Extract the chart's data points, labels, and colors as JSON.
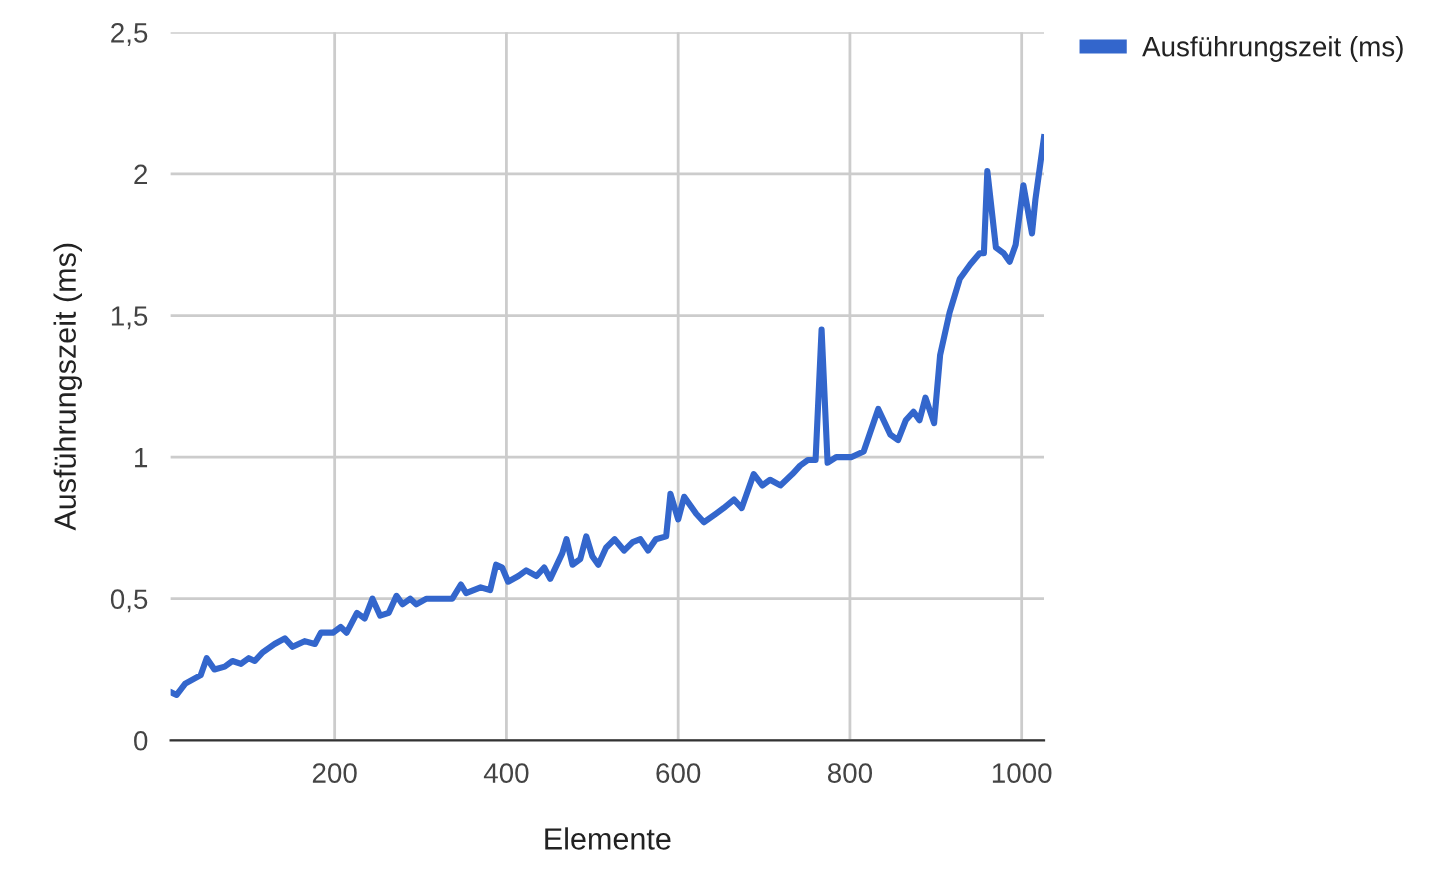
{
  "chart_data": {
    "type": "line",
    "xlabel": "Elemente",
    "ylabel": "Ausführungszeit (ms)",
    "xlim": [
      9,
      1026
    ],
    "xticks": [
      200,
      400,
      600,
      800,
      1000
    ],
    "ylim": [
      0,
      2.5
    ],
    "yticks": [
      {
        "value": 0,
        "label": "0"
      },
      {
        "value": 0.5,
        "label": "0,5"
      },
      {
        "value": 1,
        "label": "1"
      },
      {
        "value": 1.5,
        "label": "1,5"
      },
      {
        "value": 2,
        "label": "2"
      },
      {
        "value": 2.5,
        "label": "2,5"
      }
    ],
    "grid": true,
    "legend": "top right",
    "marker": "none",
    "line_style": "solid",
    "series": [
      {
        "name": "Ausführungszeit (ms)",
        "color": "#3366cc",
        "x": [
          9,
          16,
          26,
          44,
          51,
          60,
          72,
          81,
          91,
          100,
          107,
          116,
          130,
          142,
          151,
          165,
          177,
          184,
          198,
          207,
          214,
          226,
          235,
          244,
          253,
          263,
          272,
          279,
          288,
          295,
          307,
          323,
          337,
          347,
          353,
          370,
          381,
          388,
          395,
          402,
          414,
          423,
          435,
          444,
          451,
          465,
          470,
          477,
          486,
          493,
          500,
          507,
          516,
          526,
          537,
          547,
          556,
          565,
          574,
          586,
          591,
          600,
          607,
          621,
          630,
          644,
          653,
          665,
          674,
          688,
          698,
          707,
          719,
          733,
          742,
          751,
          760,
          767,
          774,
          784,
          802,
          816,
          833,
          847,
          856,
          865,
          874,
          881,
          888,
          898,
          905,
          916,
          928,
          940,
          951,
          956,
          960,
          970,
          979,
          986,
          993,
          1002,
          1012,
          1016,
          1026
        ],
        "values": [
          0.17,
          0.16,
          0.2,
          0.23,
          0.29,
          0.25,
          0.26,
          0.28,
          0.27,
          0.29,
          0.28,
          0.31,
          0.34,
          0.36,
          0.33,
          0.35,
          0.34,
          0.38,
          0.38,
          0.4,
          0.38,
          0.45,
          0.43,
          0.5,
          0.44,
          0.45,
          0.51,
          0.48,
          0.5,
          0.48,
          0.5,
          0.5,
          0.5,
          0.55,
          0.52,
          0.54,
          0.53,
          0.62,
          0.61,
          0.56,
          0.58,
          0.6,
          0.58,
          0.61,
          0.57,
          0.66,
          0.71,
          0.62,
          0.64,
          0.72,
          0.65,
          0.62,
          0.68,
          0.71,
          0.67,
          0.7,
          0.71,
          0.67,
          0.71,
          0.72,
          0.87,
          0.78,
          0.86,
          0.8,
          0.77,
          0.8,
          0.82,
          0.85,
          0.82,
          0.94,
          0.9,
          0.92,
          0.9,
          0.94,
          0.97,
          0.99,
          0.99,
          1.45,
          0.98,
          1.0,
          1.0,
          1.02,
          1.17,
          1.08,
          1.06,
          1.13,
          1.16,
          1.13,
          1.21,
          1.12,
          1.36,
          1.51,
          1.63,
          1.68,
          1.72,
          1.72,
          2.01,
          1.74,
          1.72,
          1.69,
          1.75,
          1.96,
          1.79,
          1.91,
          2.13
        ]
      }
    ]
  }
}
